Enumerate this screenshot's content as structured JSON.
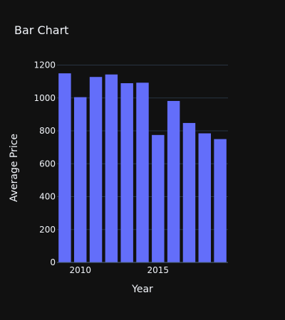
{
  "chart_data": {
    "type": "bar",
    "title": "Bar Chart",
    "xlabel": "Year",
    "ylabel": "Average Price",
    "x": [
      2009,
      2010,
      2011,
      2012,
      2013,
      2014,
      2015,
      2016,
      2017,
      2018,
      2019
    ],
    "values": [
      1150,
      1005,
      1128,
      1143,
      1090,
      1093,
      775,
      982,
      848,
      785,
      750
    ],
    "xlim": [
      2008.5,
      2019.5
    ],
    "ylim": [
      0,
      1250
    ],
    "x_ticks": [
      2010,
      2015
    ],
    "x_tick_labels": [
      "2010",
      "2015"
    ],
    "y_ticks": [
      0,
      200,
      400,
      600,
      800,
      1000,
      1200
    ],
    "y_tick_labels": [
      "0",
      "200",
      "400",
      "600",
      "800",
      "1000",
      "1200"
    ],
    "grid": true,
    "colors": {
      "background": "#111111",
      "bar": "#636efa",
      "grid": "#283442",
      "text": "#f2f5fa"
    }
  }
}
